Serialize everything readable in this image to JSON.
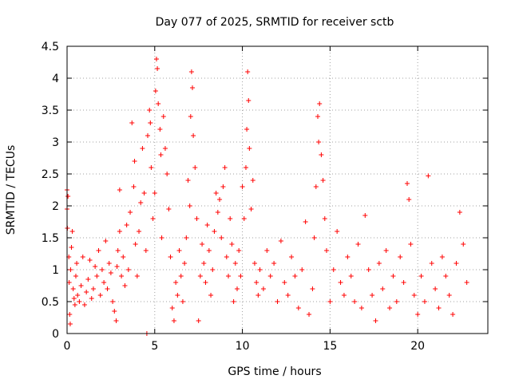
{
  "chart_data": {
    "type": "scatter",
    "title": "Day 077 of 2025, SRMTID for receiver sctb",
    "xlabel": "GPS time / hours",
    "ylabel": "SRMTID / TECUs",
    "xlim": [
      0,
      24
    ],
    "ylim": [
      0,
      4.5
    ],
    "xticks": [
      0,
      5,
      10,
      15,
      20
    ],
    "xtick_labels": [
      "0",
      "5",
      "10",
      "15",
      "20"
    ],
    "yticks": [
      0,
      0.5,
      1,
      1.5,
      2,
      2.5,
      3,
      3.5,
      4,
      4.5
    ],
    "ytick_labels": [
      "0",
      "0.5",
      "1",
      "1.5",
      "2",
      "2.5",
      "3",
      "3.5",
      "4",
      "4.5"
    ],
    "grid": true,
    "marker": "+",
    "color": "#ff0000",
    "series": [
      {
        "name": "SRMTID",
        "points": [
          [
            0.0,
            2.25
          ],
          [
            0.0,
            1.95
          ],
          [
            0.02,
            1.65
          ],
          [
            0.05,
            2.15
          ],
          [
            0.1,
            1.2
          ],
          [
            0.12,
            0.8
          ],
          [
            0.15,
            0.3
          ],
          [
            0.18,
            0.15
          ],
          [
            0.2,
            1.0
          ],
          [
            0.25,
            1.35
          ],
          [
            0.3,
            1.6
          ],
          [
            0.35,
            0.7
          ],
          [
            0.4,
            0.55
          ],
          [
            0.45,
            0.45
          ],
          [
            0.5,
            0.9
          ],
          [
            0.55,
            1.1
          ],
          [
            0.6,
            0.6
          ],
          [
            0.7,
            0.5
          ],
          [
            0.8,
            0.75
          ],
          [
            0.9,
            1.2
          ],
          [
            1.0,
            0.45
          ],
          [
            1.1,
            0.65
          ],
          [
            1.2,
            0.85
          ],
          [
            1.3,
            1.15
          ],
          [
            1.4,
            0.55
          ],
          [
            1.5,
            0.7
          ],
          [
            1.6,
            1.05
          ],
          [
            1.7,
            0.9
          ],
          [
            1.8,
            1.3
          ],
          [
            1.9,
            0.6
          ],
          [
            2.0,
            1.0
          ],
          [
            2.1,
            0.8
          ],
          [
            2.2,
            1.45
          ],
          [
            2.3,
            0.7
          ],
          [
            2.4,
            1.1
          ],
          [
            2.5,
            0.95
          ],
          [
            2.6,
            0.5
          ],
          [
            2.7,
            0.35
          ],
          [
            2.8,
            0.2
          ],
          [
            2.85,
            1.05
          ],
          [
            2.9,
            1.3
          ],
          [
            3.0,
            1.6
          ],
          [
            3.0,
            2.25
          ],
          [
            3.1,
            0.9
          ],
          [
            3.2,
            1.2
          ],
          [
            3.3,
            0.75
          ],
          [
            3.4,
            1.7
          ],
          [
            3.5,
            1.0
          ],
          [
            3.6,
            1.9
          ],
          [
            3.7,
            3.3
          ],
          [
            3.8,
            2.3
          ],
          [
            3.85,
            2.7
          ],
          [
            3.9,
            1.4
          ],
          [
            4.0,
            0.9
          ],
          [
            4.1,
            1.6
          ],
          [
            4.2,
            2.05
          ],
          [
            4.3,
            2.9
          ],
          [
            4.4,
            2.2
          ],
          [
            4.5,
            1.3
          ],
          [
            4.55,
            0.0
          ],
          [
            4.6,
            3.1
          ],
          [
            4.7,
            3.5
          ],
          [
            4.75,
            3.3
          ],
          [
            4.8,
            2.6
          ],
          [
            4.9,
            1.8
          ],
          [
            5.0,
            2.2
          ],
          [
            5.05,
            3.8
          ],
          [
            5.1,
            4.3
          ],
          [
            5.15,
            4.15
          ],
          [
            5.2,
            3.6
          ],
          [
            5.3,
            3.2
          ],
          [
            5.35,
            2.8
          ],
          [
            5.4,
            1.5
          ],
          [
            5.5,
            3.4
          ],
          [
            5.6,
            2.9
          ],
          [
            5.7,
            2.5
          ],
          [
            5.8,
            1.95
          ],
          [
            5.9,
            1.2
          ],
          [
            6.0,
            0.4
          ],
          [
            6.1,
            0.2
          ],
          [
            6.2,
            0.8
          ],
          [
            6.3,
            0.6
          ],
          [
            6.4,
            1.3
          ],
          [
            6.5,
            0.9
          ],
          [
            6.6,
            0.5
          ],
          [
            6.7,
            1.1
          ],
          [
            6.8,
            1.5
          ],
          [
            6.9,
            2.4
          ],
          [
            7.0,
            2.0
          ],
          [
            7.05,
            3.4
          ],
          [
            7.1,
            4.1
          ],
          [
            7.15,
            3.85
          ],
          [
            7.2,
            3.1
          ],
          [
            7.3,
            2.6
          ],
          [
            7.4,
            1.8
          ],
          [
            7.5,
            0.2
          ],
          [
            7.6,
            0.9
          ],
          [
            7.7,
            1.4
          ],
          [
            7.8,
            1.1
          ],
          [
            7.9,
            0.8
          ],
          [
            8.0,
            1.7
          ],
          [
            8.1,
            1.3
          ],
          [
            8.2,
            0.6
          ],
          [
            8.3,
            1.0
          ],
          [
            8.4,
            1.6
          ],
          [
            8.5,
            2.2
          ],
          [
            8.6,
            1.9
          ],
          [
            8.7,
            2.1
          ],
          [
            8.8,
            1.5
          ],
          [
            8.9,
            2.3
          ],
          [
            9.0,
            2.6
          ],
          [
            9.1,
            1.2
          ],
          [
            9.2,
            0.9
          ],
          [
            9.3,
            1.8
          ],
          [
            9.4,
            1.4
          ],
          [
            9.5,
            0.5
          ],
          [
            9.6,
            1.1
          ],
          [
            9.7,
            0.7
          ],
          [
            9.8,
            1.3
          ],
          [
            9.9,
            0.9
          ],
          [
            10.0,
            2.3
          ],
          [
            10.1,
            1.8
          ],
          [
            10.2,
            2.6
          ],
          [
            10.25,
            3.2
          ],
          [
            10.3,
            4.1
          ],
          [
            10.35,
            3.65
          ],
          [
            10.4,
            2.9
          ],
          [
            10.5,
            1.95
          ],
          [
            10.6,
            2.4
          ],
          [
            10.7,
            1.1
          ],
          [
            10.8,
            0.8
          ],
          [
            10.9,
            0.6
          ],
          [
            11.0,
            1.0
          ],
          [
            11.2,
            0.7
          ],
          [
            11.4,
            1.3
          ],
          [
            11.6,
            0.9
          ],
          [
            11.8,
            1.1
          ],
          [
            12.0,
            0.5
          ],
          [
            12.2,
            1.45
          ],
          [
            12.4,
            0.8
          ],
          [
            12.6,
            0.6
          ],
          [
            12.8,
            1.2
          ],
          [
            13.0,
            0.9
          ],
          [
            13.2,
            0.4
          ],
          [
            13.4,
            1.0
          ],
          [
            13.6,
            1.75
          ],
          [
            13.8,
            0.3
          ],
          [
            14.0,
            0.7
          ],
          [
            14.1,
            1.5
          ],
          [
            14.2,
            2.3
          ],
          [
            14.3,
            3.4
          ],
          [
            14.35,
            3.0
          ],
          [
            14.4,
            3.6
          ],
          [
            14.5,
            2.8
          ],
          [
            14.6,
            2.4
          ],
          [
            14.7,
            1.8
          ],
          [
            14.8,
            1.3
          ],
          [
            15.0,
            0.5
          ],
          [
            15.2,
            1.0
          ],
          [
            15.4,
            1.6
          ],
          [
            15.6,
            0.8
          ],
          [
            15.8,
            0.6
          ],
          [
            16.0,
            1.2
          ],
          [
            16.2,
            0.9
          ],
          [
            16.4,
            0.5
          ],
          [
            16.6,
            1.4
          ],
          [
            16.8,
            0.4
          ],
          [
            17.0,
            1.85
          ],
          [
            17.2,
            1.0
          ],
          [
            17.4,
            0.6
          ],
          [
            17.6,
            0.2
          ],
          [
            17.8,
            1.1
          ],
          [
            18.0,
            0.7
          ],
          [
            18.2,
            1.3
          ],
          [
            18.4,
            0.4
          ],
          [
            18.6,
            0.9
          ],
          [
            18.8,
            0.5
          ],
          [
            19.0,
            1.2
          ],
          [
            19.2,
            0.8
          ],
          [
            19.4,
            2.35
          ],
          [
            19.5,
            2.1
          ],
          [
            19.6,
            1.4
          ],
          [
            19.8,
            0.6
          ],
          [
            20.0,
            0.3
          ],
          [
            20.2,
            0.9
          ],
          [
            20.4,
            0.5
          ],
          [
            20.6,
            2.47
          ],
          [
            20.8,
            1.1
          ],
          [
            21.0,
            0.7
          ],
          [
            21.2,
            0.4
          ],
          [
            21.4,
            1.2
          ],
          [
            21.6,
            0.9
          ],
          [
            21.8,
            0.6
          ],
          [
            22.0,
            0.3
          ],
          [
            22.2,
            1.1
          ],
          [
            22.4,
            1.9
          ],
          [
            22.6,
            1.4
          ],
          [
            22.8,
            0.8
          ]
        ]
      }
    ]
  }
}
